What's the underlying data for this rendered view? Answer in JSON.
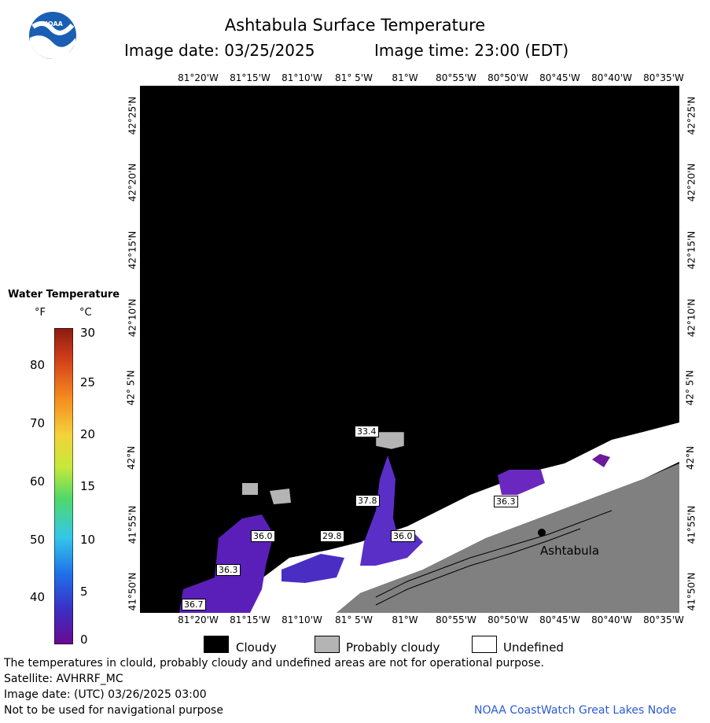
{
  "header": {
    "title": "Ashtabula Surface Temperature",
    "image_date": "Image date: 03/25/2025",
    "image_time": "Image time: 23:00 (EDT)"
  },
  "logo": {
    "text": "NOAA"
  },
  "map": {
    "lon_labels_top": [
      "81°20'W",
      "81°15'W",
      "81°10'W",
      "81° 5'W",
      "81°W",
      "80°55'W",
      "80°50'W",
      "80°45'W",
      "80°40'W",
      "80°35'W"
    ],
    "lon_labels_bottom": [
      "81°20'W",
      "81°15'W",
      "81°10'W",
      "81° 5'W",
      "81°W",
      "80°55'W",
      "80°50'W",
      "80°45'W",
      "80°40'W",
      "80°35'W"
    ],
    "lat_labels": [
      "42°25'N",
      "42°20'N",
      "42°15'N",
      "42°10'N",
      "42° 5'N",
      "42°N",
      "41°55'N",
      "41°50'N"
    ],
    "temperature_labels": [
      "33.4",
      "37.8",
      "36.0",
      "29.8",
      "36.0",
      "36.3",
      "36.3",
      "36.7"
    ],
    "city": "Ashtabula"
  },
  "legend": {
    "title": "Water Temperature",
    "unit_f": "°F",
    "unit_c": "°C",
    "f_ticks": [
      "80",
      "70",
      "60",
      "50",
      "40"
    ],
    "c_ticks": [
      "30",
      "25",
      "20",
      "15",
      "10",
      "5",
      "0"
    ],
    "colors": [
      "#6a0a8f",
      "#3b2fc4",
      "#1f6fe8",
      "#34c8e8",
      "#4fd86a",
      "#c6e83a",
      "#f3d43a",
      "#f58a1e",
      "#d2401a",
      "#8c1a10"
    ]
  },
  "key": {
    "cloudy": "Cloudy",
    "probably_cloudy": "Probably cloudy",
    "undefined": "Undefined",
    "cloudy_color": "#000000",
    "probably_cloudy_color": "#b4b4b4",
    "undefined_color": "#ffffff"
  },
  "footer": {
    "note": "The temperatures in clould, probably cloudy and undefined areas are not for operational purpose.",
    "satellite": "Satellite: AVHRRF_MC",
    "utc_date": "Image date: (UTC) 03/26/2025  03:00",
    "nav_warning": "Not to be used for navigational purpose",
    "credit": "NOAA CoastWatch Great Lakes Node"
  }
}
